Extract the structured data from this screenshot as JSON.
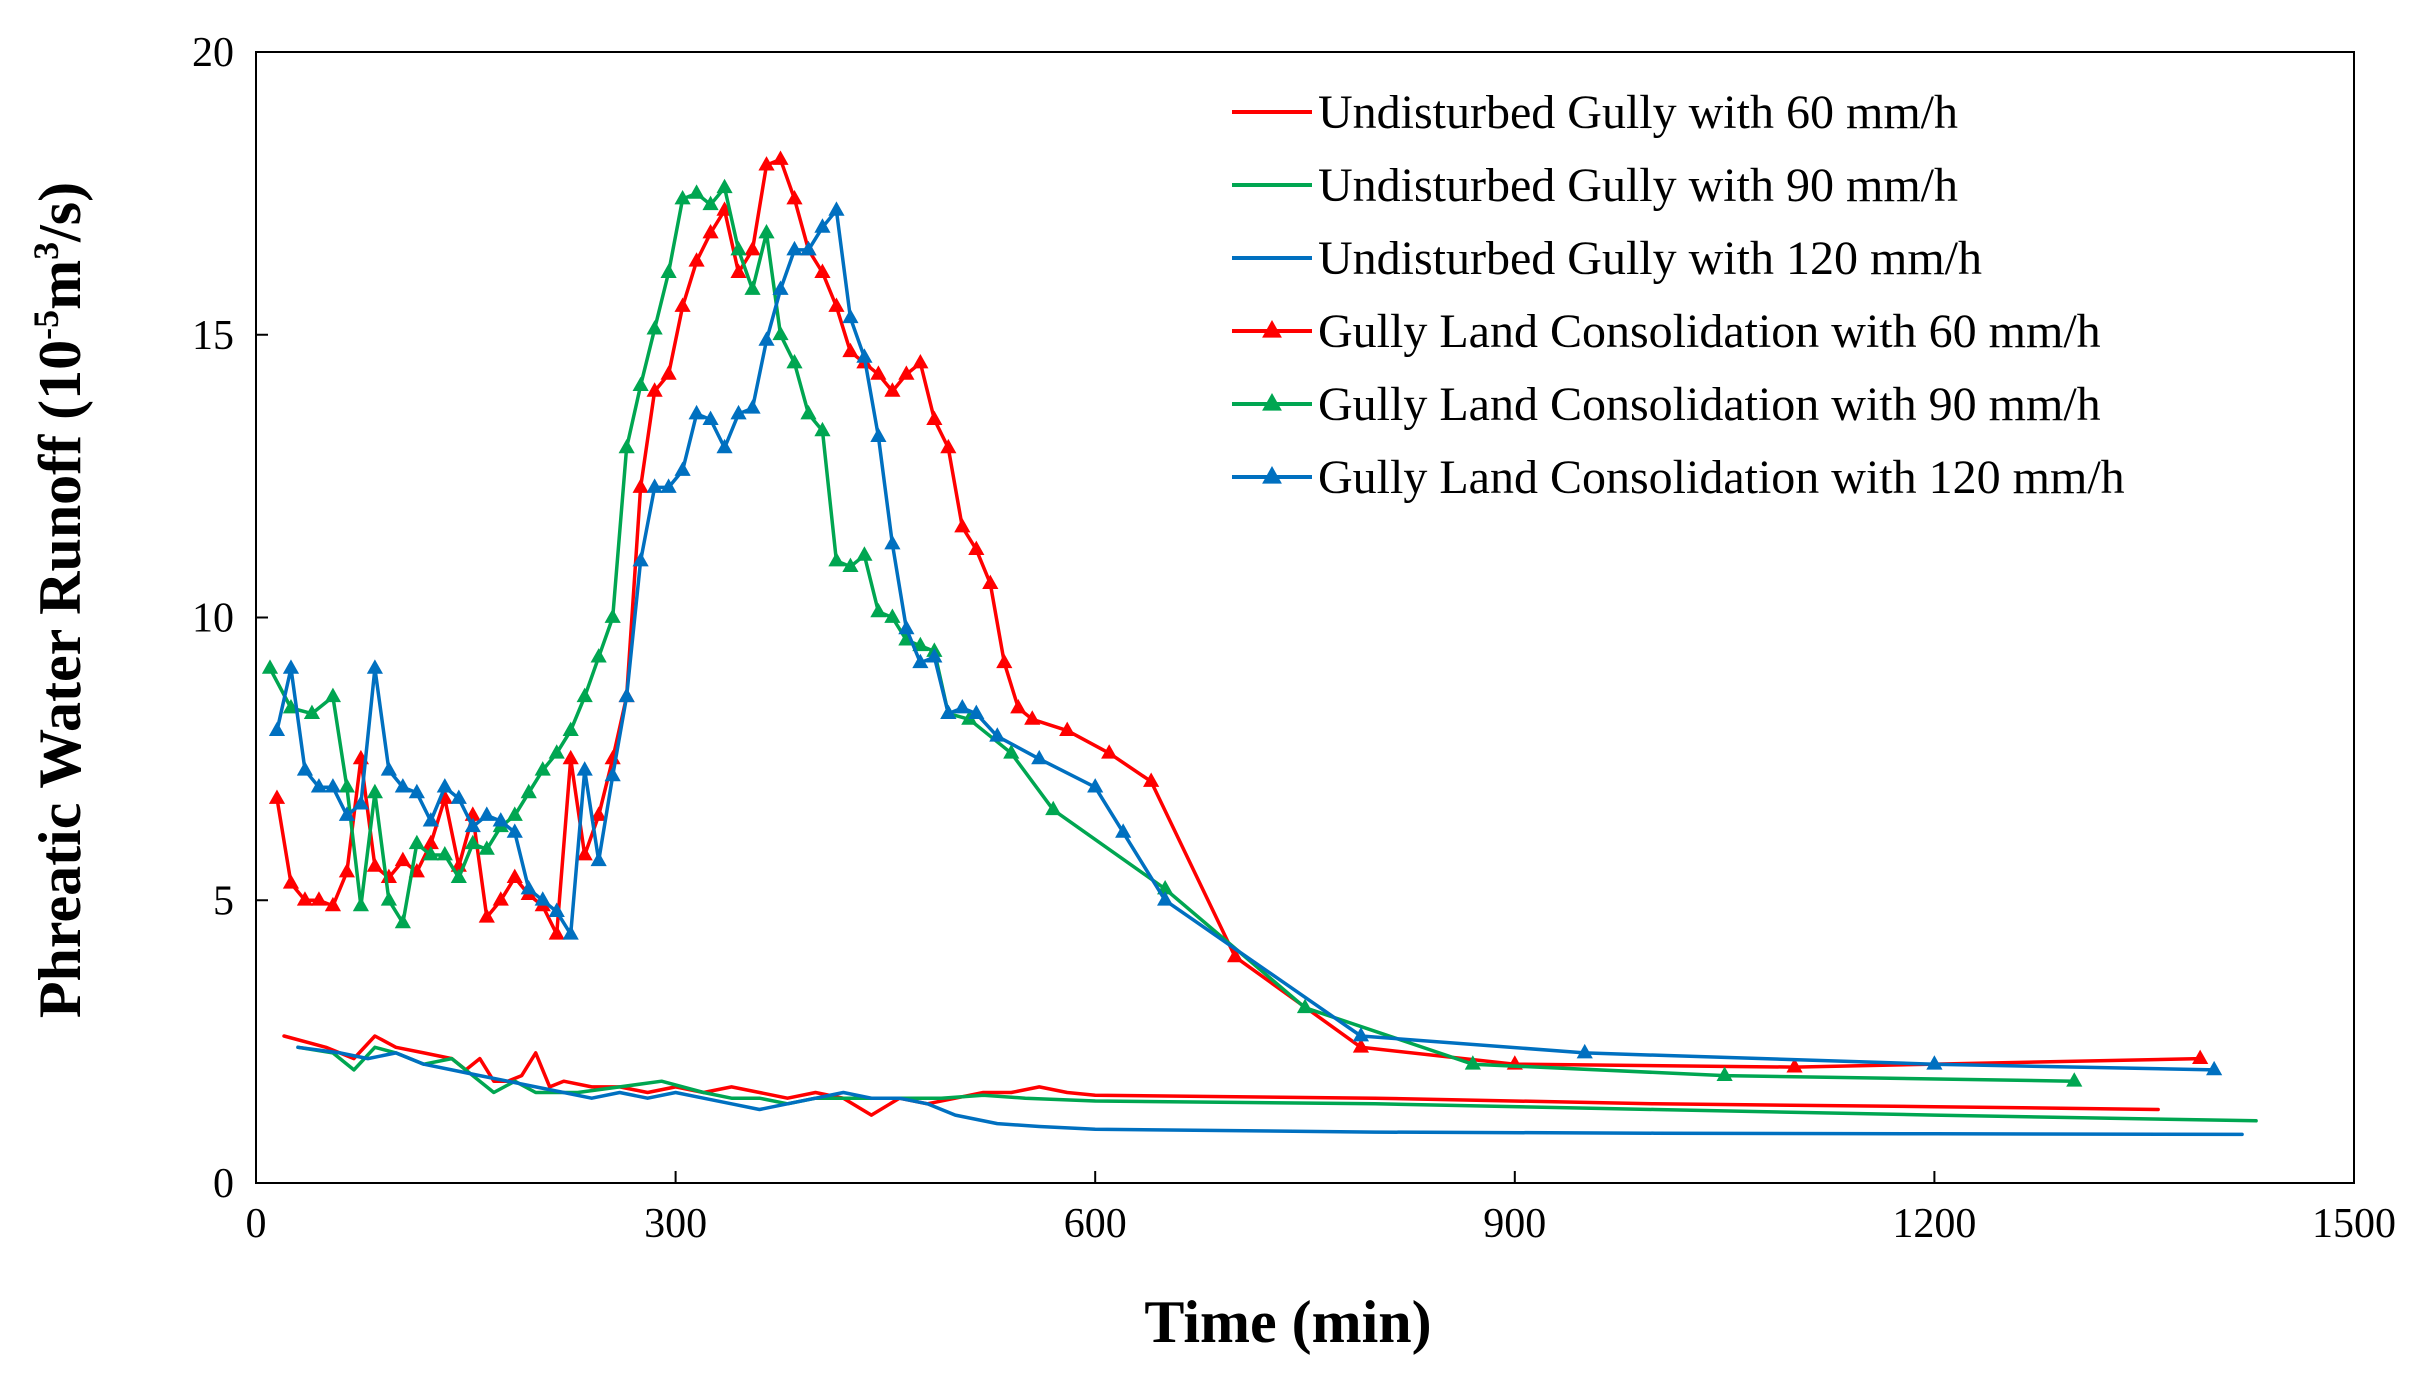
{
  "chart_data": {
    "type": "line",
    "title": "",
    "xlabel": "Time (min)",
    "ylabel_parts": [
      "Phreatic Water Runoff (10",
      "-5",
      "m",
      "3",
      "/s)"
    ],
    "xlim": [
      0,
      1500
    ],
    "ylim": [
      0,
      20
    ],
    "xticks": [
      0,
      300,
      600,
      900,
      1200,
      1500
    ],
    "yticks": [
      0,
      5,
      10,
      15,
      20
    ],
    "grid": false,
    "legend_position": "top-right",
    "series": [
      {
        "name": "Undisturbed Gully with 60 mm/h",
        "color": "#ff0000",
        "marker": "none",
        "x": [
          20,
          50,
          70,
          85,
          100,
          120,
          140,
          150,
          160,
          170,
          180,
          190,
          200,
          210,
          220,
          240,
          260,
          280,
          300,
          320,
          340,
          360,
          380,
          400,
          420,
          440,
          460,
          480,
          500,
          520,
          540,
          560,
          580,
          600,
          800,
          1000,
          1200,
          1360
        ],
        "y": [
          2.6,
          2.4,
          2.2,
          2.6,
          2.4,
          2.3,
          2.2,
          2.0,
          2.2,
          1.8,
          1.8,
          1.9,
          2.3,
          1.7,
          1.8,
          1.7,
          1.7,
          1.6,
          1.7,
          1.6,
          1.7,
          1.6,
          1.5,
          1.6,
          1.5,
          1.2,
          1.5,
          1.4,
          1.5,
          1.6,
          1.6,
          1.7,
          1.6,
          1.55,
          1.5,
          1.4,
          1.35,
          1.3
        ]
      },
      {
        "name": "Undisturbed Gully with 90 mm/h",
        "color": "#00a651",
        "marker": "none",
        "x": [
          30,
          55,
          70,
          85,
          100,
          120,
          140,
          155,
          170,
          185,
          200,
          230,
          260,
          290,
          320,
          340,
          360,
          380,
          400,
          430,
          460,
          490,
          520,
          550,
          600,
          800,
          1000,
          1200,
          1430
        ],
        "y": [
          2.4,
          2.3,
          2.0,
          2.4,
          2.3,
          2.1,
          2.2,
          1.9,
          1.6,
          1.8,
          1.6,
          1.6,
          1.7,
          1.8,
          1.6,
          1.5,
          1.5,
          1.4,
          1.5,
          1.5,
          1.5,
          1.5,
          1.55,
          1.5,
          1.45,
          1.4,
          1.3,
          1.2,
          1.1
        ]
      },
      {
        "name": "Undisturbed Gully with 120 mm/h",
        "color": "#0070c0",
        "marker": "none",
        "x": [
          30,
          60,
          80,
          100,
          120,
          140,
          160,
          180,
          200,
          220,
          240,
          260,
          280,
          300,
          320,
          340,
          360,
          380,
          400,
          420,
          440,
          460,
          480,
          500,
          530,
          560,
          600,
          800,
          1000,
          1200,
          1420
        ],
        "y": [
          2.4,
          2.3,
          2.2,
          2.3,
          2.1,
          2.0,
          1.9,
          1.8,
          1.7,
          1.6,
          1.5,
          1.6,
          1.5,
          1.6,
          1.5,
          1.4,
          1.3,
          1.4,
          1.5,
          1.6,
          1.5,
          1.5,
          1.4,
          1.2,
          1.05,
          1.0,
          0.95,
          0.9,
          0.88,
          0.87,
          0.86
        ]
      },
      {
        "name": "Gully Land Consolidation with 60 mm/h",
        "color": "#ff0000",
        "marker": "triangle",
        "x": [
          15,
          25,
          35,
          45,
          55,
          65,
          75,
          85,
          95,
          105,
          115,
          125,
          135,
          145,
          155,
          165,
          175,
          185,
          195,
          205,
          215,
          225,
          235,
          245,
          255,
          265,
          275,
          285,
          295,
          305,
          315,
          325,
          335,
          345,
          355,
          365,
          375,
          385,
          395,
          405,
          415,
          425,
          435,
          445,
          455,
          465,
          475,
          485,
          495,
          505,
          515,
          525,
          535,
          545,
          555,
          580,
          610,
          640,
          700,
          790,
          900,
          1100,
          1390
        ],
        "y": [
          6.8,
          5.3,
          5.0,
          5.0,
          4.9,
          5.5,
          7.5,
          5.6,
          5.4,
          5.7,
          5.5,
          6.0,
          6.8,
          5.6,
          6.5,
          4.7,
          5.0,
          5.4,
          5.1,
          4.9,
          4.4,
          7.5,
          5.8,
          6.5,
          7.5,
          8.6,
          12.3,
          14.0,
          14.3,
          15.5,
          16.3,
          16.8,
          17.2,
          16.1,
          16.5,
          18.0,
          18.1,
          17.4,
          16.5,
          16.1,
          15.5,
          14.7,
          14.5,
          14.3,
          14.0,
          14.3,
          14.5,
          13.5,
          13.0,
          11.6,
          11.2,
          10.6,
          9.2,
          8.4,
          8.2,
          8.0,
          7.6,
          7.1,
          4.0,
          2.4,
          2.1,
          2.05,
          2.2
        ]
      },
      {
        "name": "Gully Land Consolidation with 90 mm/h",
        "color": "#00a651",
        "marker": "triangle",
        "x": [
          10,
          25,
          40,
          55,
          65,
          75,
          85,
          95,
          105,
          115,
          125,
          135,
          145,
          155,
          165,
          175,
          185,
          195,
          205,
          215,
          225,
          235,
          245,
          255,
          265,
          275,
          285,
          295,
          305,
          315,
          325,
          335,
          345,
          355,
          365,
          375,
          385,
          395,
          405,
          415,
          425,
          435,
          445,
          455,
          465,
          475,
          485,
          495,
          510,
          540,
          570,
          650,
          750,
          870,
          1050,
          1300
        ],
        "y": [
          9.1,
          8.4,
          8.3,
          8.6,
          7.0,
          4.9,
          6.9,
          5.0,
          4.6,
          6.0,
          5.8,
          5.8,
          5.4,
          6.0,
          5.9,
          6.3,
          6.5,
          6.9,
          7.3,
          7.6,
          8.0,
          8.6,
          9.3,
          10.0,
          13.0,
          14.1,
          15.1,
          16.1,
          17.4,
          17.5,
          17.3,
          17.6,
          16.5,
          15.8,
          16.8,
          15.0,
          14.5,
          13.6,
          13.3,
          11.0,
          10.9,
          11.1,
          10.1,
          10.0,
          9.6,
          9.5,
          9.4,
          8.3,
          8.2,
          7.6,
          6.6,
          5.2,
          3.1,
          2.1,
          1.9,
          1.8
        ]
      },
      {
        "name": "Gully Land Consolidation with 120 mm/h",
        "color": "#0070c0",
        "marker": "triangle",
        "x": [
          15,
          25,
          35,
          45,
          55,
          65,
          75,
          85,
          95,
          105,
          115,
          125,
          135,
          145,
          155,
          165,
          175,
          185,
          195,
          205,
          215,
          225,
          235,
          245,
          255,
          265,
          275,
          285,
          295,
          305,
          315,
          325,
          335,
          345,
          355,
          365,
          375,
          385,
          395,
          405,
          415,
          425,
          435,
          445,
          455,
          465,
          475,
          485,
          495,
          505,
          515,
          530,
          560,
          600,
          620,
          650,
          790,
          950,
          1200,
          1400
        ],
        "y": [
          8.0,
          9.1,
          7.3,
          7.0,
          7.0,
          6.5,
          6.7,
          9.1,
          7.3,
          7.0,
          6.9,
          6.4,
          7.0,
          6.8,
          6.3,
          6.5,
          6.4,
          6.2,
          5.2,
          5.0,
          4.8,
          4.4,
          7.3,
          5.7,
          7.2,
          8.6,
          11.0,
          12.3,
          12.3,
          12.6,
          13.6,
          13.5,
          13.0,
          13.6,
          13.7,
          14.9,
          15.8,
          16.5,
          16.5,
          16.9,
          17.2,
          15.3,
          14.6,
          13.2,
          11.3,
          9.8,
          9.2,
          9.3,
          8.3,
          8.4,
          8.3,
          7.9,
          7.5,
          7.0,
          6.2,
          5.0,
          2.6,
          2.3,
          2.1,
          2.0
        ]
      }
    ]
  }
}
